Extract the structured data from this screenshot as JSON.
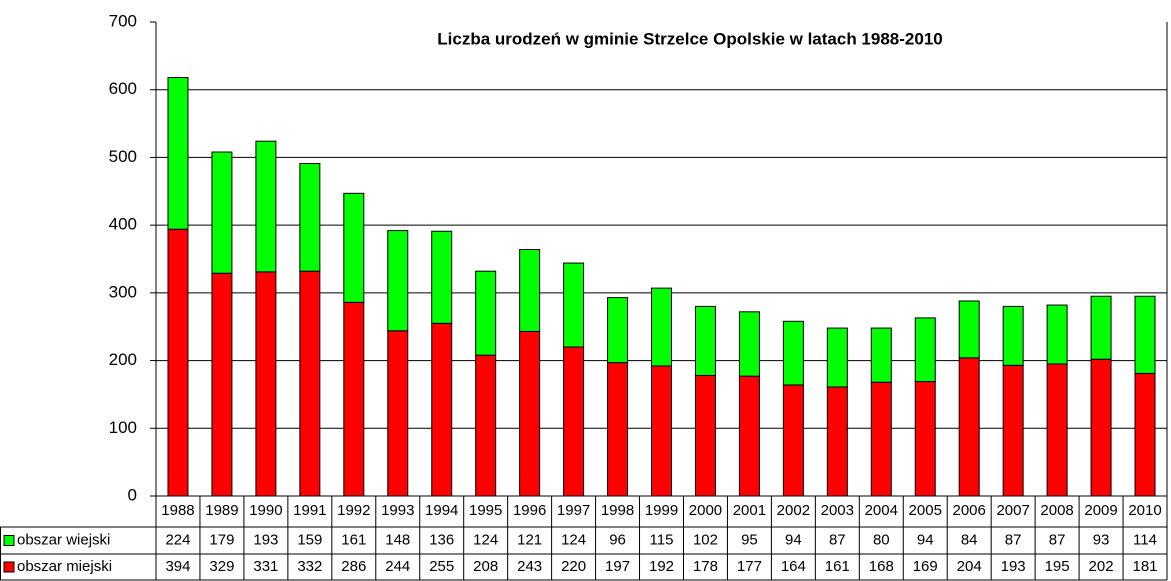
{
  "chart_data": {
    "type": "bar",
    "stacked": true,
    "title": "Liczba urodzeń w gminie Strzelce Opolskie w latach 1988-2010",
    "categories": [
      "1988",
      "1989",
      "1990",
      "1991",
      "1992",
      "1993",
      "1994",
      "1995",
      "1996",
      "1997",
      "1998",
      "1999",
      "2000",
      "2001",
      "2002",
      "2003",
      "2004",
      "2005",
      "2006",
      "2007",
      "2008",
      "2009",
      "2010"
    ],
    "series": [
      {
        "name": "obszar wiejski",
        "color": "#00ff00",
        "values": [
          224,
          179,
          193,
          159,
          161,
          148,
          136,
          124,
          121,
          124,
          96,
          115,
          102,
          95,
          94,
          87,
          80,
          94,
          84,
          87,
          87,
          93,
          114
        ]
      },
      {
        "name": "obszar miejski",
        "color": "#ff0000",
        "values": [
          394,
          329,
          331,
          332,
          286,
          244,
          255,
          208,
          243,
          220,
          197,
          192,
          178,
          177,
          164,
          161,
          168,
          169,
          204,
          193,
          195,
          202,
          181
        ]
      }
    ],
    "ylim": [
      0,
      700
    ],
    "yticks": [
      0,
      100,
      200,
      300,
      400,
      500,
      600,
      700
    ],
    "grid": true
  }
}
